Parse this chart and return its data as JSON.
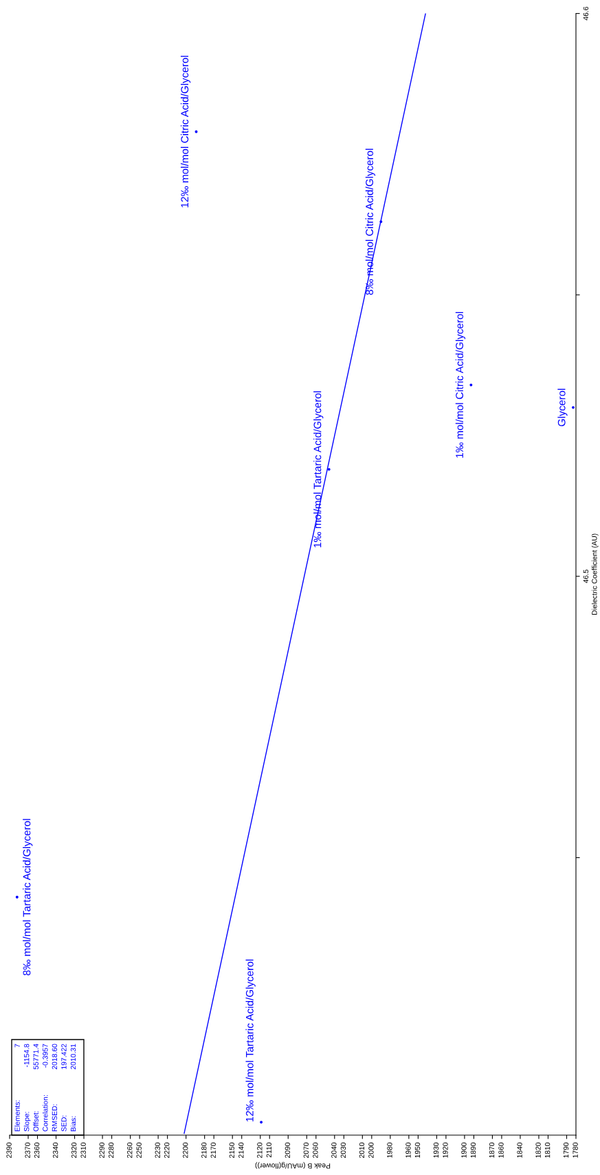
{
  "chart_data": {
    "type": "scatter",
    "xlabel": "Peak B (mAU/g(flower))",
    "ylabel": "Dielectric Coefficient (AU)",
    "x": [
      2189,
      1990,
      1893,
      1783,
      2046,
      2119,
      2382
    ],
    "values": [
      46.579,
      46.563,
      46.534,
      46.53,
      46.519,
      46.403,
      46.443
    ],
    "color": "#0000ff",
    "marker": "circle",
    "grid": false,
    "series": [
      {
        "type": "line",
        "color": "#0000ff",
        "marker": "none",
        "x": [
          2202,
          1942
        ],
        "values": [
          46.401,
          46.6
        ]
      }
    ],
    "xlim": [
      2390,
      1780
    ],
    "xticks": [
      2390,
      2370,
      2360,
      2340,
      2320,
      2310,
      2290,
      2280,
      2260,
      2250,
      2230,
      2220,
      2200,
      2180,
      2170,
      2150,
      2140,
      2120,
      2110,
      2090,
      2070,
      2060,
      2040,
      2030,
      2010,
      2000,
      1980,
      1960,
      1950,
      1930,
      1920,
      1900,
      1890,
      1870,
      1860,
      1840,
      1820,
      1810,
      1790,
      1780
    ],
    "ylim": [
      46.4007,
      46.6
    ],
    "yticks": [
      {
        "value": 46.45,
        "label": null
      },
      46.5,
      {
        "value": 46.55,
        "label": null
      },
      46.6
    ],
    "annotations": [
      {
        "text": "12‰ mol/mol Citric Acid/Glycerol",
        "x": 2189,
        "y": 46.579
      },
      {
        "text": "8‰ mol/mol Citric Acid/Glycerol",
        "x": 1990,
        "y": 46.563
      },
      {
        "text": "1‰ mol/mol Citric Acid/Glycerol",
        "x": 1893,
        "y": 46.534
      },
      {
        "text": "Glycerol",
        "x": 1783,
        "y": 46.53
      },
      {
        "text": "1‰ mol/mol Tartaric Acid/Glycerol",
        "x": 2046,
        "y": 46.519
      },
      {
        "text": "12‰ mol/mol Tartaric Acid/Glycerol",
        "x": 2119,
        "y": 46.403
      },
      {
        "text": "8‰ mol/mol Tartaric Acid/Glycerol",
        "x": 2382,
        "y": 46.443
      },
      "Elements: 7",
      "Slope: -1154.8",
      "Offset: 55771.4",
      "Correlation: -0.3957",
      "RMSED: 2018.60",
      "SED: 197.422",
      "Bias: 2010.31"
    ]
  }
}
